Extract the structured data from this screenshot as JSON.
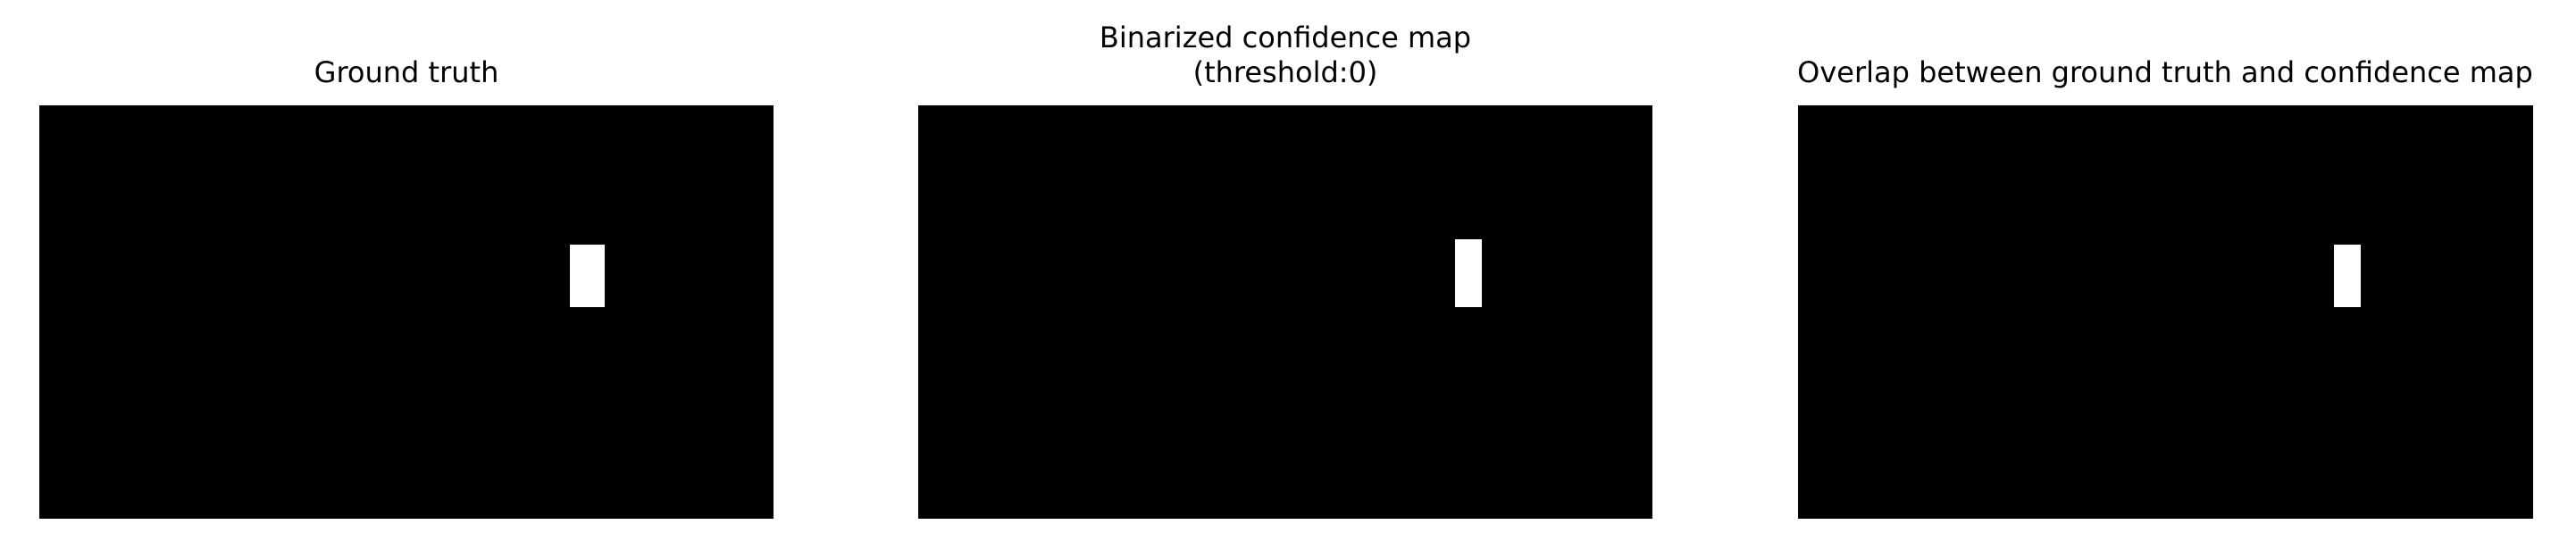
{
  "panels": [
    {
      "title": [
        "Ground truth"
      ]
    },
    {
      "title": [
        "Binarized confidence map",
        "(threshold:0)"
      ]
    },
    {
      "title": [
        "Overlap between ground truth and confidence map"
      ]
    }
  ]
}
